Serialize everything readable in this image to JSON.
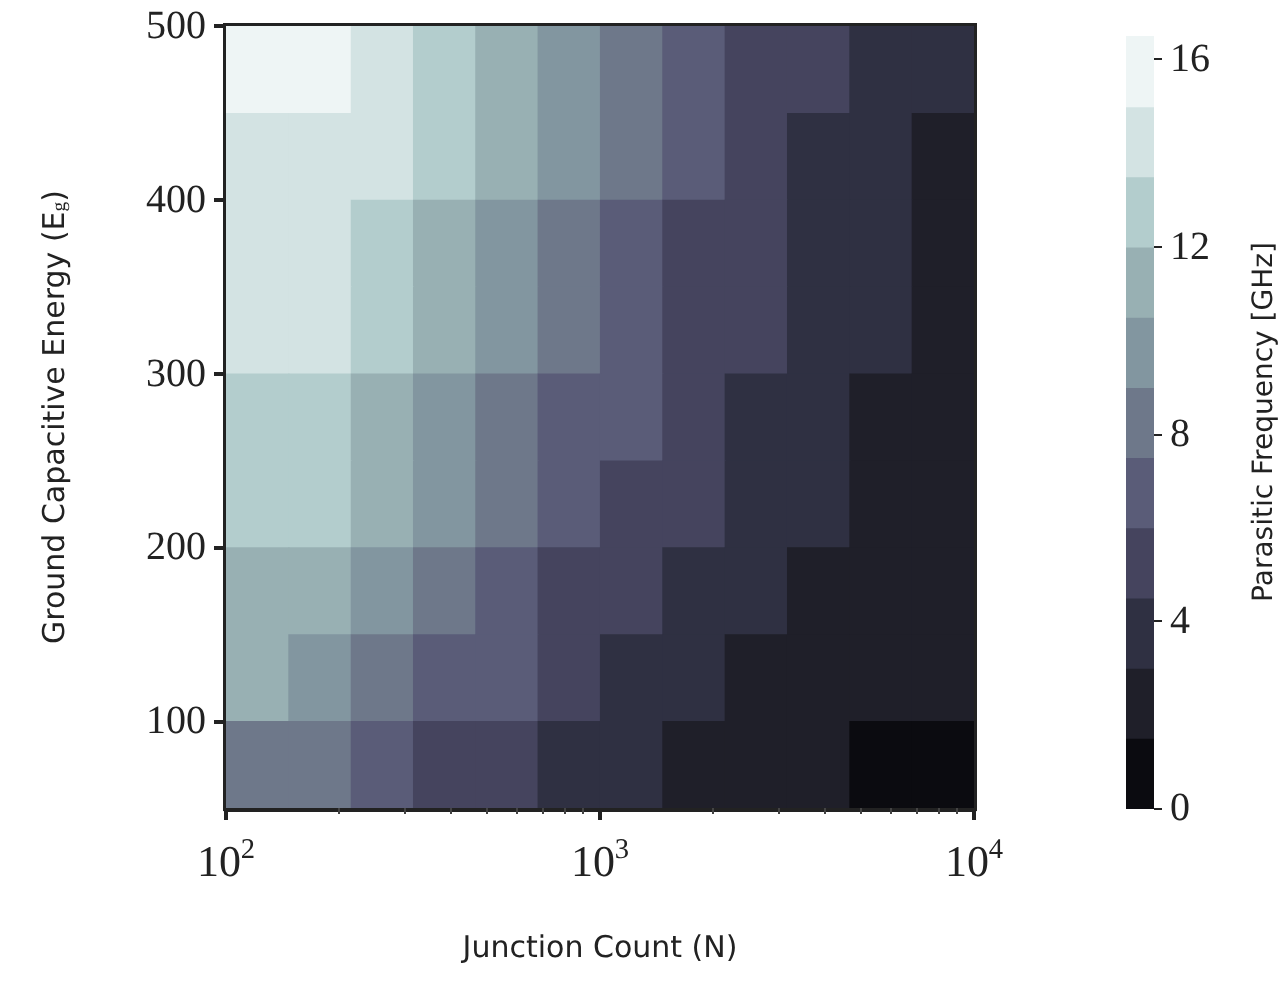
{
  "chart_data": {
    "type": "heatmap",
    "xlabel": "Junction Count (N)",
    "ylabel": "Ground Capacitive Energy (E$_{g}$)",
    "clabel": "Parasitic Frequency [GHz]",
    "log": "x",
    "xlim": [
      100,
      10000
    ],
    "xticks": [
      {
        "value": 100,
        "label": "10$^{2}$"
      },
      {
        "value": 1000,
        "label": "10$^{3}$"
      },
      {
        "value": 10000,
        "label": "10$^{4}$"
      }
    ],
    "ylim": [
      50,
      500
    ],
    "yticks": [
      100,
      200,
      300,
      400,
      500
    ],
    "clim": [
      0,
      16.5
    ],
    "cticks": [
      0,
      4,
      8,
      12,
      16
    ],
    "colors": [
      "#0b0b10",
      "#1f1f29",
      "#2f3042",
      "#45445e",
      "#5a5c78",
      "#6e788a",
      "#8296a0",
      "#98b0b3",
      "#b3cdcd",
      "#d3e3e3",
      "#eef5f5"
    ],
    "x": [
      121,
      178,
      261,
      383,
      562,
      825,
      1211,
      1778,
      2610,
      3831,
      5623,
      8254
    ],
    "y": [
      475,
      425,
      375,
      325,
      275,
      225,
      175,
      125,
      75
    ],
    "cells": [
      [
        15.0,
        15.3,
        14.6,
        13.2,
        11.4,
        9.6,
        8.0,
        6.6,
        5.5,
        4.5,
        3.7,
        3.1
      ],
      [
        14.7,
        14.9,
        14.1,
        12.5,
        10.8,
        9.1,
        7.6,
        6.3,
        5.2,
        4.3,
        3.5,
        2.9
      ],
      [
        14.3,
        14.4,
        13.4,
        11.9,
        10.2,
        8.6,
        7.1,
        5.9,
        4.9,
        4.0,
        3.3,
        2.8
      ],
      [
        13.9,
        13.8,
        12.7,
        11.2,
        9.5,
        8.0,
        6.6,
        5.5,
        4.5,
        3.8,
        3.1,
        2.6
      ],
      [
        13.4,
        13.0,
        11.9,
        10.4,
        8.8,
        7.4,
        6.1,
        5.1,
        4.2,
        3.5,
        2.9,
        2.4
      ],
      [
        12.7,
        12.2,
        10.9,
        9.5,
        8.0,
        6.7,
        5.5,
        4.6,
        3.8,
        3.1,
        2.6,
        2.1
      ],
      [
        11.9,
        11.1,
        9.8,
        8.4,
        7.1,
        5.9,
        4.9,
        4.0,
        3.3,
        2.8,
        2.3,
        1.9
      ],
      [
        10.7,
        9.7,
        8.5,
        7.2,
        6.0,
        5.0,
        4.1,
        3.4,
        2.8,
        2.3,
        1.9,
        1.6
      ],
      [
        8.9,
        7.8,
        6.7,
        5.6,
        4.7,
        3.9,
        3.2,
        2.6,
        2.2,
        1.8,
        1.4,
        1.2
      ]
    ]
  }
}
